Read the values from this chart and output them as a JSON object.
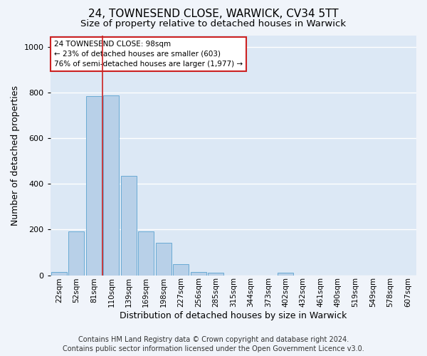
{
  "title": "24, TOWNESEND CLOSE, WARWICK, CV34 5TT",
  "subtitle": "Size of property relative to detached houses in Warwick",
  "xlabel": "Distribution of detached houses by size in Warwick",
  "ylabel": "Number of detached properties",
  "bin_labels": [
    "22sqm",
    "52sqm",
    "81sqm",
    "110sqm",
    "139sqm",
    "169sqm",
    "198sqm",
    "227sqm",
    "256sqm",
    "285sqm",
    "315sqm",
    "344sqm",
    "373sqm",
    "402sqm",
    "432sqm",
    "461sqm",
    "490sqm",
    "519sqm",
    "549sqm",
    "578sqm",
    "607sqm"
  ],
  "bar_heights": [
    15,
    193,
    786,
    789,
    435,
    192,
    142,
    48,
    13,
    10,
    0,
    0,
    0,
    10,
    0,
    0,
    0,
    0,
    0,
    0,
    0
  ],
  "bar_color": "#b8d0e8",
  "bar_edge_color": "#6aaad4",
  "vline_bin_index": 2.5,
  "vline_color": "#cc2222",
  "annotation_text": "24 TOWNESEND CLOSE: 98sqm\n← 23% of detached houses are smaller (603)\n76% of semi-detached houses are larger (1,977) →",
  "annotation_box_color": "#ffffff",
  "annotation_box_edge_color": "#cc2222",
  "footer_line1": "Contains HM Land Registry data © Crown copyright and database right 2024.",
  "footer_line2": "Contains public sector information licensed under the Open Government Licence v3.0.",
  "ylim": [
    0,
    1050
  ],
  "bg_color": "#dce8f5",
  "grid_color": "#ffffff",
  "fig_bg_color": "#f0f4fa",
  "title_fontsize": 11,
  "subtitle_fontsize": 9.5,
  "axis_label_fontsize": 9,
  "tick_fontsize": 7.5,
  "footer_fontsize": 7
}
